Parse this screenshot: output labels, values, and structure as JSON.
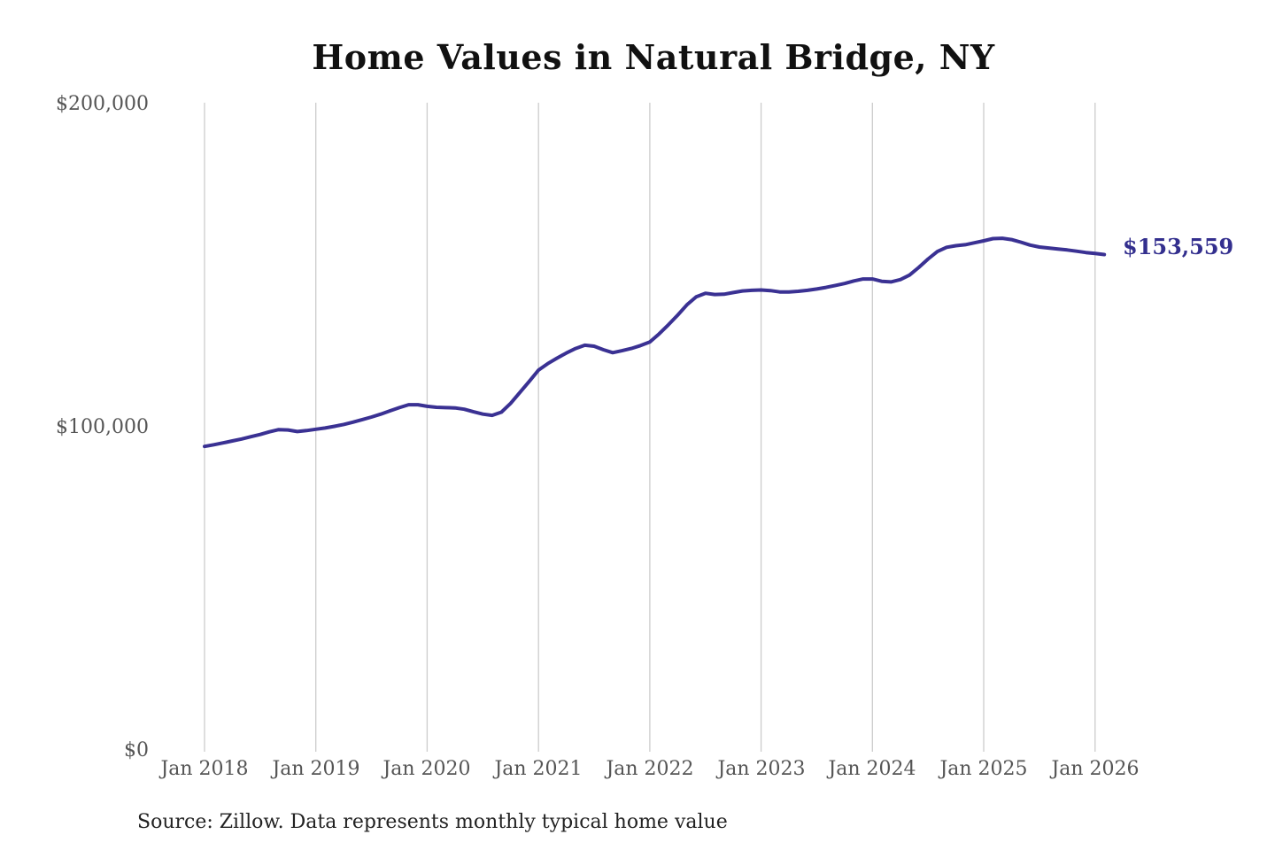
{
  "page": {
    "background": "#ffffff"
  },
  "chart_data": {
    "type": "line",
    "title": "Home Values in Natural Bridge, NY",
    "source_note": "Source: Zillow. Data represents monthly typical home value",
    "end_label": "$153,559",
    "latest_value": 153559,
    "series_name": "Typical home value",
    "frequency": "monthly",
    "ylim": [
      0,
      200000
    ],
    "grid": "vertical-only",
    "legend": "none",
    "colors": {
      "line": "#3a3193",
      "end_label": "#332f8e",
      "grid": "#cccccc",
      "tick_text": "#555555",
      "title_text": "#111111",
      "source_text": "#222222"
    },
    "y_ticks": [
      {
        "label": "$0",
        "value": 0
      },
      {
        "label": "$100,000",
        "value": 100000
      },
      {
        "label": "$200,000",
        "value": 200000
      }
    ],
    "x_ticks": [
      {
        "label": "Jan 2018",
        "year_index": 0
      },
      {
        "label": "Jan 2019",
        "year_index": 1
      },
      {
        "label": "Jan 2020",
        "year_index": 2
      },
      {
        "label": "Jan 2021",
        "year_index": 3
      },
      {
        "label": "Jan 2022",
        "year_index": 4
      },
      {
        "label": "Jan 2023",
        "year_index": 5
      },
      {
        "label": "Jan 2024",
        "year_index": 6
      },
      {
        "label": "Jan 2025",
        "year_index": 7
      },
      {
        "label": "Jan 2026",
        "year_index": 8
      }
    ],
    "months": [
      "2018-01",
      "2018-02",
      "2018-03",
      "2018-04",
      "2018-05",
      "2018-06",
      "2018-07",
      "2018-08",
      "2018-09",
      "2018-10",
      "2018-11",
      "2018-12",
      "2019-01",
      "2019-02",
      "2019-03",
      "2019-04",
      "2019-05",
      "2019-06",
      "2019-07",
      "2019-08",
      "2019-09",
      "2019-10",
      "2019-11",
      "2019-12",
      "2020-01",
      "2020-02",
      "2020-03",
      "2020-04",
      "2020-05",
      "2020-06",
      "2020-07",
      "2020-08",
      "2020-09",
      "2020-10",
      "2020-11",
      "2020-12",
      "2021-01",
      "2021-02",
      "2021-03",
      "2021-04",
      "2021-05",
      "2021-06",
      "2021-07",
      "2021-08",
      "2021-09",
      "2021-10",
      "2021-11",
      "2021-12",
      "2022-01",
      "2022-02",
      "2022-03",
      "2022-04",
      "2022-05",
      "2022-06",
      "2022-07",
      "2022-08",
      "2022-09",
      "2022-10",
      "2022-11",
      "2022-12",
      "2023-01",
      "2023-02",
      "2023-03",
      "2023-04",
      "2023-05",
      "2023-06",
      "2023-07",
      "2023-08",
      "2023-09",
      "2023-10",
      "2023-11",
      "2023-12",
      "2024-01",
      "2024-02",
      "2024-03",
      "2024-04",
      "2024-05",
      "2024-06",
      "2024-07",
      "2024-08",
      "2024-09",
      "2024-10",
      "2024-11",
      "2024-12",
      "2025-01",
      "2025-02",
      "2025-03",
      "2025-04",
      "2025-05",
      "2025-06",
      "2025-07",
      "2025-08",
      "2025-09",
      "2025-10",
      "2025-11",
      "2025-12",
      "2026-01",
      "2026-02"
    ],
    "values": [
      94200,
      94700,
      95300,
      95900,
      96500,
      97200,
      97900,
      98700,
      99400,
      99300,
      98800,
      99100,
      99500,
      99900,
      100400,
      101000,
      101700,
      102500,
      103300,
      104200,
      105200,
      106200,
      107100,
      107100,
      106600,
      106300,
      106200,
      106100,
      105700,
      104900,
      104200,
      103800,
      104800,
      107500,
      110900,
      114300,
      117800,
      119800,
      121500,
      123100,
      124500,
      125500,
      125200,
      124100,
      123200,
      123800,
      124500,
      125400,
      126500,
      129000,
      131800,
      134800,
      138000,
      140500,
      141600,
      141200,
      141300,
      141800,
      142300,
      142500,
      142600,
      142400,
      142000,
      142000,
      142200,
      142500,
      142900,
      143400,
      144000,
      144600,
      145400,
      146000,
      146000,
      145300,
      145100,
      145800,
      147200,
      149600,
      152200,
      154500,
      155800,
      156300,
      156600,
      157200,
      157800,
      158500,
      158600,
      158200,
      157400,
      156500,
      155900,
      155600,
      155300,
      155000,
      154600,
      154200,
      153900,
      153559
    ]
  }
}
